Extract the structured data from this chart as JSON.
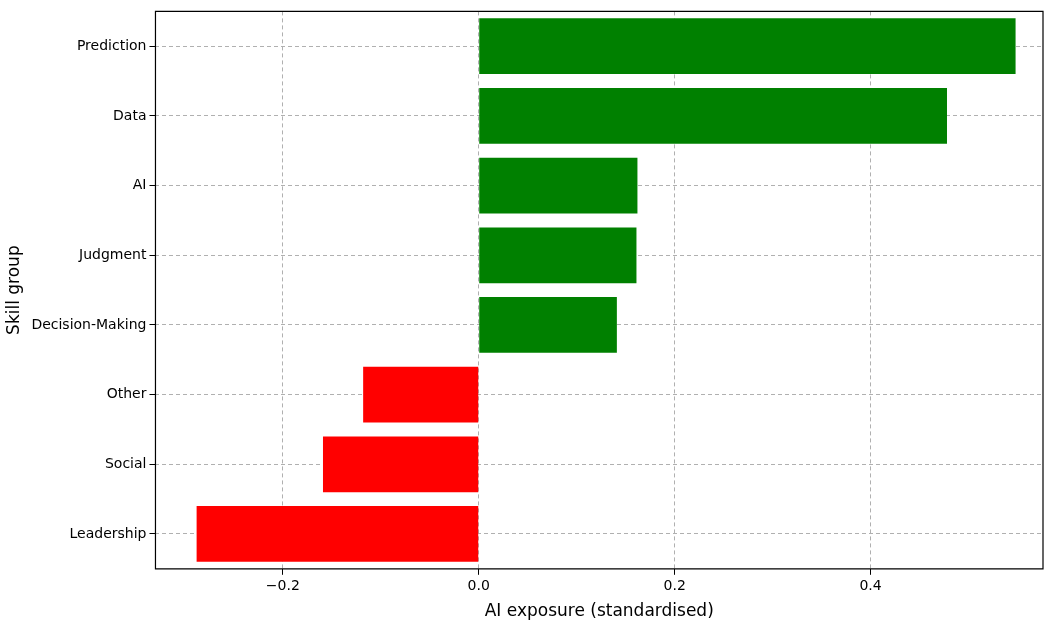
{
  "chart_data": {
    "type": "bar",
    "orientation": "horizontal",
    "xlabel": "AI exposure (standardised)",
    "ylabel": "Skill group",
    "categories": [
      "Prediction",
      "Data",
      "AI",
      "Judgment",
      "Decision-Making",
      "Other",
      "Social",
      "Leadership"
    ],
    "values": [
      0.548,
      0.478,
      0.162,
      0.161,
      0.141,
      -0.118,
      -0.159,
      -0.288
    ],
    "colors": [
      "#008000",
      "#008000",
      "#008000",
      "#008000",
      "#008000",
      "#ff0000",
      "#ff0000",
      "#ff0000"
    ],
    "xlim": [
      -0.33,
      0.576
    ],
    "xticks": [
      {
        "value": -0.2,
        "label": "−0.2"
      },
      {
        "value": 0,
        "label": "0.0"
      },
      0.2,
      0.4
    ],
    "grid": true
  }
}
